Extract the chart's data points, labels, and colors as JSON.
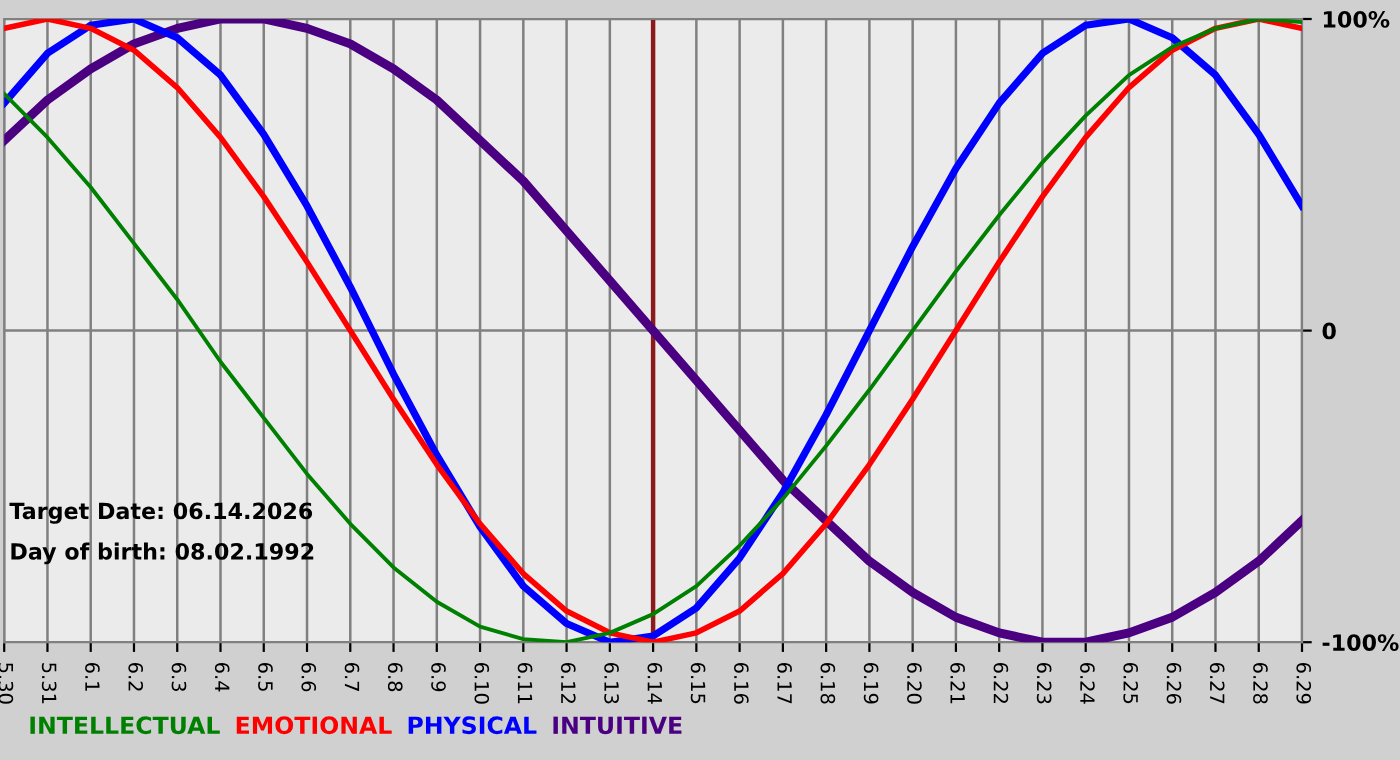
{
  "chart_data": {
    "type": "line",
    "categories": [
      "5.30",
      "5.31",
      "6.1",
      "6.2",
      "6.3",
      "6.4",
      "6.5",
      "6.6",
      "6.7",
      "6.8",
      "6.9",
      "6.10",
      "6.11",
      "6.12",
      "6.13",
      "6.14",
      "6.15",
      "6.16",
      "6.17",
      "6.18",
      "6.19",
      "6.20",
      "6.21",
      "6.22",
      "6.23",
      "6.24",
      "6.25",
      "6.26",
      "6.27",
      "6.28",
      "6.29"
    ],
    "series": [
      {
        "name": "INTELLECTUAL",
        "color": "#008000",
        "values": [
          76,
          62,
          46,
          28,
          10,
          -10,
          -28,
          -46,
          -62,
          -76,
          -87,
          -95,
          -99,
          -100,
          -97,
          -91,
          -82,
          -69,
          -54,
          -37,
          -19,
          0,
          19,
          37,
          54,
          69,
          82,
          91,
          97,
          100,
          99
        ]
      },
      {
        "name": "EMOTIONAL",
        "color": "#ff0000",
        "values": [
          97,
          100,
          97,
          90,
          78,
          62,
          43,
          22,
          0,
          -22,
          -43,
          -62,
          -78,
          -90,
          -97,
          -100,
          -97,
          -90,
          -78,
          -62,
          -43,
          -22,
          0,
          22,
          43,
          62,
          78,
          90,
          97,
          100,
          97
        ]
      },
      {
        "name": "PHYSICAL",
        "color": "#0000ff",
        "values": [
          73,
          89,
          98,
          100,
          94,
          82,
          63,
          40,
          14,
          -14,
          -40,
          -63,
          -82,
          -94,
          -100,
          -98,
          -89,
          -73,
          -52,
          -27,
          0,
          27,
          52,
          73,
          89,
          98,
          100,
          94,
          82,
          63,
          40
        ]
      },
      {
        "name": "INTUITIVE",
        "color": "#4b0082",
        "values": [
          61,
          74,
          84,
          92,
          97,
          100,
          100,
          97,
          92,
          84,
          74,
          61,
          48,
          32,
          16,
          0,
          -16,
          -32,
          -48,
          -61,
          -74,
          -84,
          -92,
          -97,
          -100,
          -100,
          -97,
          -92,
          -84,
          -74,
          -61
        ]
      }
    ],
    "ylim": [
      -100,
      100
    ],
    "yticks": [
      {
        "value": 100,
        "label": "100%"
      },
      0,
      {
        "value": -100,
        "label": "-100%"
      }
    ],
    "grid": true,
    "legend": "bottom",
    "marker": "none",
    "line_style": "solid",
    "ref_lines": [
      {
        "axis": "x",
        "value": "6.14",
        "color": "#8b1a1a"
      }
    ],
    "annotations": [
      "Target Date: 06.14.2026",
      "Day of birth: 08.02.1992"
    ]
  }
}
